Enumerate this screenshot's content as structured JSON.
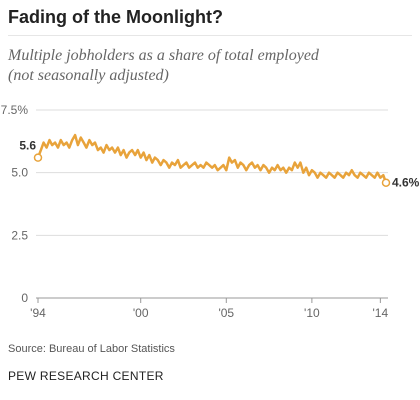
{
  "chart_data": {
    "type": "line",
    "title": "Fading of the Moonlight?",
    "subtitle_lines": [
      "Multiple jobholders as a share of total employed",
      "(not seasonally adjusted)"
    ],
    "xlabel": "",
    "ylabel": "",
    "ylim": [
      0,
      7.5
    ],
    "xlim": [
      1994,
      2014.33
    ],
    "y_ticks": [
      {
        "value": 0,
        "label": "0"
      },
      {
        "value": 2.5,
        "label": "2.5"
      },
      {
        "value": 5.0,
        "label": "5.0"
      },
      {
        "value": 7.5,
        "label": "7.5%"
      }
    ],
    "x_ticks": [
      {
        "value": 1994,
        "label": "'94"
      },
      {
        "value": 2000,
        "label": "'00"
      },
      {
        "value": 2005,
        "label": "'05"
      },
      {
        "value": 2010,
        "label": "'10"
      },
      {
        "value": 2014,
        "label": "'14"
      }
    ],
    "grid": true,
    "series": [
      {
        "color": "#e8a33b",
        "x": [
          1994.0,
          1994.17,
          1994.33,
          1994.5,
          1994.67,
          1994.83,
          1995.0,
          1995.17,
          1995.33,
          1995.5,
          1995.67,
          1995.83,
          1996.0,
          1996.17,
          1996.33,
          1996.5,
          1996.67,
          1996.83,
          1997.0,
          1997.17,
          1997.33,
          1997.5,
          1997.67,
          1997.83,
          1998.0,
          1998.17,
          1998.33,
          1998.5,
          1998.67,
          1998.83,
          1999.0,
          1999.17,
          1999.33,
          1999.5,
          1999.67,
          1999.83,
          2000.0,
          2000.17,
          2000.33,
          2000.5,
          2000.67,
          2000.83,
          2001.0,
          2001.17,
          2001.33,
          2001.5,
          2001.67,
          2001.83,
          2002.0,
          2002.17,
          2002.33,
          2002.5,
          2002.67,
          2002.83,
          2003.0,
          2003.17,
          2003.33,
          2003.5,
          2003.67,
          2003.83,
          2004.0,
          2004.17,
          2004.33,
          2004.5,
          2004.67,
          2004.83,
          2005.0,
          2005.17,
          2005.33,
          2005.5,
          2005.67,
          2005.83,
          2006.0,
          2006.17,
          2006.33,
          2006.5,
          2006.67,
          2006.83,
          2007.0,
          2007.17,
          2007.33,
          2007.5,
          2007.67,
          2007.83,
          2008.0,
          2008.17,
          2008.33,
          2008.5,
          2008.67,
          2008.83,
          2009.0,
          2009.17,
          2009.33,
          2009.5,
          2009.67,
          2009.83,
          2010.0,
          2010.17,
          2010.33,
          2010.5,
          2010.67,
          2010.83,
          2011.0,
          2011.17,
          2011.33,
          2011.5,
          2011.67,
          2011.83,
          2012.0,
          2012.17,
          2012.33,
          2012.5,
          2012.67,
          2012.83,
          2013.0,
          2013.17,
          2013.33,
          2013.5,
          2013.67,
          2013.83,
          2014.0,
          2014.17,
          2014.33
        ],
        "values": [
          5.6,
          5.9,
          6.2,
          6.0,
          6.3,
          6.1,
          6.2,
          6.0,
          6.3,
          6.1,
          6.2,
          6.0,
          6.3,
          6.5,
          6.1,
          6.4,
          6.2,
          6.0,
          6.3,
          6.1,
          6.2,
          5.9,
          6.0,
          5.8,
          6.1,
          5.9,
          6.0,
          5.8,
          6.0,
          5.7,
          5.9,
          5.6,
          5.8,
          5.9,
          5.7,
          5.9,
          5.6,
          5.8,
          5.5,
          5.7,
          5.4,
          5.6,
          5.5,
          5.3,
          5.5,
          5.4,
          5.2,
          5.4,
          5.3,
          5.5,
          5.2,
          5.3,
          5.4,
          5.2,
          5.3,
          5.4,
          5.2,
          5.3,
          5.2,
          5.4,
          5.3,
          5.2,
          5.3,
          5.1,
          5.2,
          5.3,
          5.1,
          5.6,
          5.4,
          5.5,
          5.2,
          5.4,
          5.3,
          5.1,
          5.3,
          5.4,
          5.2,
          5.3,
          5.1,
          5.3,
          5.2,
          5.0,
          5.2,
          5.1,
          5.3,
          5.1,
          5.2,
          5.0,
          5.2,
          5.1,
          5.4,
          5.2,
          5.4,
          5.0,
          5.2,
          4.9,
          5.1,
          5.0,
          4.8,
          5.0,
          4.9,
          4.8,
          5.0,
          4.9,
          4.8,
          5.0,
          4.9,
          4.8,
          5.0,
          4.9,
          5.1,
          4.9,
          4.8,
          5.0,
          4.9,
          4.8,
          5.0,
          4.9,
          4.8,
          5.0,
          4.8,
          4.9,
          4.6
        ]
      }
    ],
    "annotations": [
      {
        "x": 1994.0,
        "y": 5.6,
        "label": "5.6",
        "side": "left"
      },
      {
        "x": 2014.33,
        "y": 4.6,
        "label": "4.6%",
        "side": "right"
      }
    ]
  },
  "footer": {
    "source": "Source: Bureau of Labor Statistics",
    "brand": "PEW RESEARCH CENTER"
  }
}
